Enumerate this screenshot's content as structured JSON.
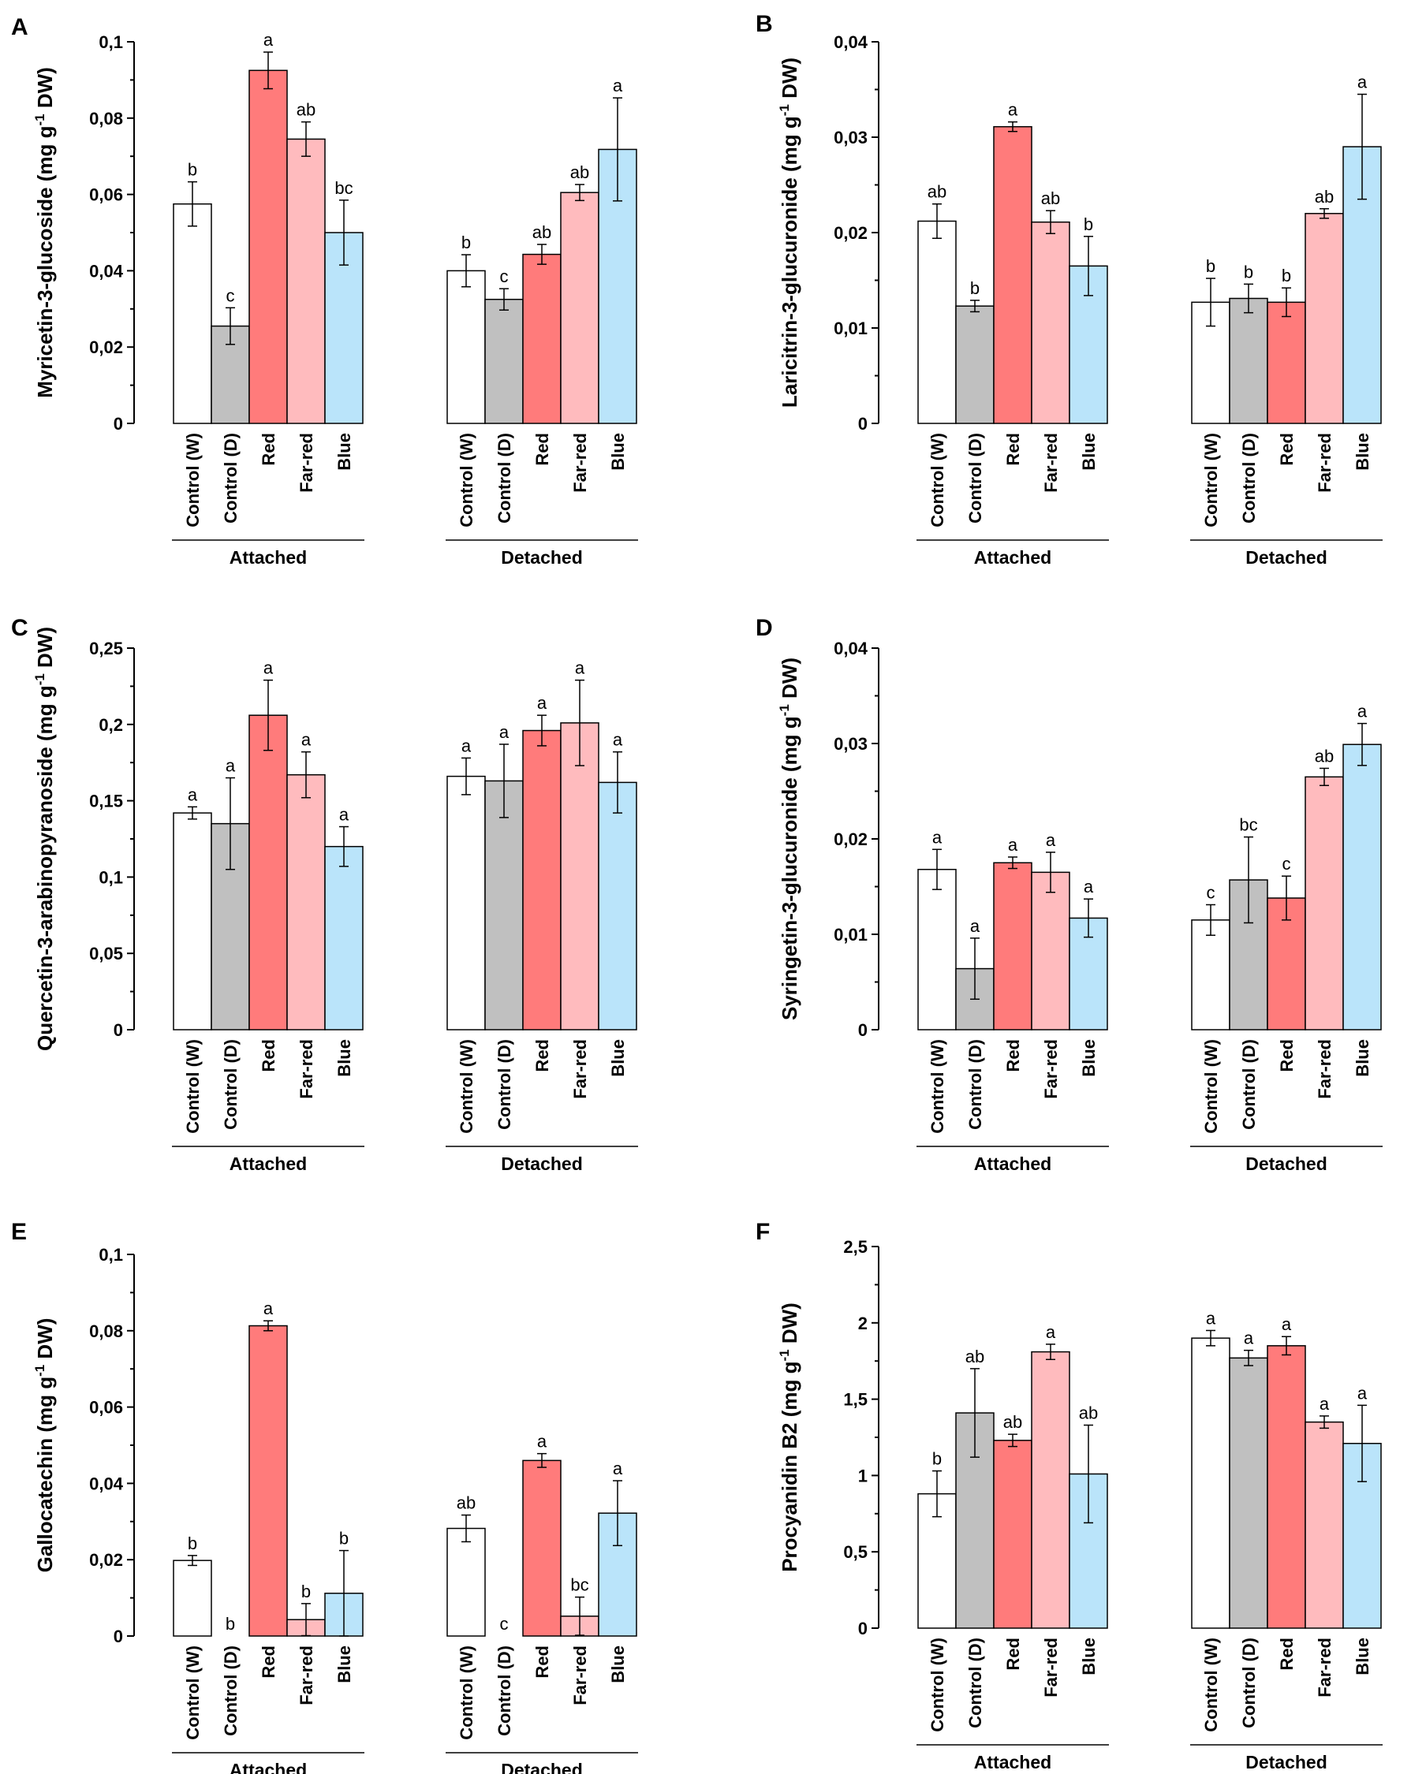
{
  "chart_data": [
    {
      "type": "bar",
      "panel": "A",
      "ylabel": "Myricetin-3-glucoside (mg g-1 DW)",
      "ylabel_main": "Myricetin-3-glucoside (mg g",
      "ylabel_sup": "-1",
      "ylabel_tail": " DW)",
      "ylim": [
        0,
        0.1
      ],
      "yticks": [
        "0",
        "0,02",
        "0,04",
        "0,06",
        "0,08",
        "0,1"
      ],
      "ytick_values": [
        0,
        0.02,
        0.04,
        0.06,
        0.08,
        0.1
      ],
      "categories": [
        "Control (W)",
        "Control (D)",
        "Red",
        "Far-red",
        "Blue"
      ],
      "groups": [
        {
          "name": "Attached",
          "values": [
            0.0575,
            0.0255,
            0.0925,
            0.0745,
            0.05
          ],
          "errors": [
            0.0058,
            0.0048,
            0.0048,
            0.0045,
            0.0085
          ],
          "labels": [
            "b",
            "c",
            "a",
            "ab",
            "bc"
          ]
        },
        {
          "name": "Detached",
          "values": [
            0.04,
            0.0325,
            0.0443,
            0.0605,
            0.0718
          ],
          "errors": [
            0.0042,
            0.0028,
            0.0026,
            0.0021,
            0.0135
          ],
          "labels": [
            "b",
            "c",
            "ab",
            "ab",
            "a"
          ]
        }
      ],
      "colors": [
        "#ffffff",
        "#c0c0c0",
        "#ff7b7b",
        "#ffbbbe",
        "#bae4fa"
      ]
    },
    {
      "type": "bar",
      "panel": "B",
      "ylabel": "Laricitrin-3-glucuronide (mg g-1 DW)",
      "ylabel_main": "Laricitrin-3-glucuronide (mg g",
      "ylabel_sup": "-1",
      "ylabel_tail": " DW)",
      "ylim": [
        0,
        0.04
      ],
      "yticks": [
        "0",
        "0,01",
        "0,02",
        "0,03",
        "0,04"
      ],
      "ytick_values": [
        0,
        0.01,
        0.02,
        0.03,
        0.04
      ],
      "categories": [
        "Control (W)",
        "Control (D)",
        "Red",
        "Far-red",
        "Blue"
      ],
      "groups": [
        {
          "name": "Attached",
          "values": [
            0.0212,
            0.0123,
            0.0311,
            0.0211,
            0.0165
          ],
          "errors": [
            0.0018,
            0.0006,
            0.0005,
            0.0012,
            0.0031
          ],
          "labels": [
            "ab",
            "b",
            "a",
            "ab",
            "b"
          ]
        },
        {
          "name": "Detached",
          "values": [
            0.0127,
            0.0131,
            0.0127,
            0.022,
            0.029
          ],
          "errors": [
            0.0025,
            0.0015,
            0.0015,
            0.0005,
            0.0055
          ],
          "labels": [
            "b",
            "b",
            "b",
            "ab",
            "a"
          ]
        }
      ],
      "colors": [
        "#ffffff",
        "#c0c0c0",
        "#ff7b7b",
        "#ffbbbe",
        "#bae4fa"
      ]
    },
    {
      "type": "bar",
      "panel": "C",
      "ylabel": "Quercetin-3-arabinopyranoside (mg g-1 DW)",
      "ylabel_main": "Quercetin-3-arabinopyranoside (mg g",
      "ylabel_sup": "-1",
      "ylabel_tail": " DW)",
      "ylim": [
        0,
        0.25
      ],
      "yticks": [
        "0",
        "0,05",
        "0,1",
        "0,15",
        "0,2",
        "0,25"
      ],
      "ytick_values": [
        0,
        0.05,
        0.1,
        0.15,
        0.2,
        0.25
      ],
      "categories": [
        "Control (W)",
        "Control (D)",
        "Red",
        "Far-red",
        "Blue"
      ],
      "groups": [
        {
          "name": "Attached",
          "values": [
            0.142,
            0.135,
            0.206,
            0.167,
            0.12
          ],
          "errors": [
            0.004,
            0.03,
            0.023,
            0.015,
            0.013
          ],
          "labels": [
            "a",
            "a",
            "a",
            "a",
            "a"
          ]
        },
        {
          "name": "Detached",
          "values": [
            0.166,
            0.163,
            0.196,
            0.201,
            0.162
          ],
          "errors": [
            0.012,
            0.024,
            0.01,
            0.028,
            0.02
          ],
          "labels": [
            "a",
            "a",
            "a",
            "a",
            "a"
          ]
        }
      ],
      "colors": [
        "#ffffff",
        "#c0c0c0",
        "#ff7b7b",
        "#ffbbbe",
        "#bae4fa"
      ]
    },
    {
      "type": "bar",
      "panel": "D",
      "ylabel": "Syringetin-3-glucuronide (mg g-1 DW)",
      "ylabel_main": "Syringetin-3-glucuronide (mg g",
      "ylabel_sup": "-1",
      "ylabel_tail": " DW)",
      "ylim": [
        0,
        0.04
      ],
      "yticks": [
        "0",
        "0,01",
        "0,02",
        "0,03",
        "0,04"
      ],
      "ytick_values": [
        0,
        0.01,
        0.02,
        0.03,
        0.04
      ],
      "categories": [
        "Control (W)",
        "Control (D)",
        "Red",
        "Far-red",
        "Blue"
      ],
      "groups": [
        {
          "name": "Attached",
          "values": [
            0.0168,
            0.0064,
            0.0175,
            0.0165,
            0.0117
          ],
          "errors": [
            0.0021,
            0.0032,
            0.0006,
            0.0021,
            0.002
          ],
          "labels": [
            "a",
            "a",
            "a",
            "a",
            "a"
          ]
        },
        {
          "name": "Detached",
          "values": [
            0.0115,
            0.0157,
            0.0138,
            0.0265,
            0.0299
          ],
          "errors": [
            0.0016,
            0.0045,
            0.0023,
            0.0009,
            0.0022
          ],
          "labels": [
            "c",
            "bc",
            "c",
            "ab",
            "a"
          ]
        }
      ],
      "colors": [
        "#ffffff",
        "#c0c0c0",
        "#ff7b7b",
        "#ffbbbe",
        "#bae4fa"
      ]
    },
    {
      "type": "bar",
      "panel": "E",
      "ylabel": "Gallocatechin (mg g-1 DW)",
      "ylabel_main": "Gallocatechin (mg g",
      "ylabel_sup": "-1",
      "ylabel_tail": " DW)",
      "ylim": [
        0,
        0.1
      ],
      "yticks": [
        "0",
        "0,02",
        "0,04",
        "0,06",
        "0,08",
        "0,1"
      ],
      "ytick_values": [
        0,
        0.02,
        0.04,
        0.06,
        0.08,
        0.1
      ],
      "categories": [
        "Control (W)",
        "Control (D)",
        "Red",
        "Far-red",
        "Blue"
      ],
      "groups": [
        {
          "name": "Attached",
          "values": [
            0.0198,
            0.0,
            0.0813,
            0.0043,
            0.0112
          ],
          "errors": [
            0.0013,
            0.0,
            0.0013,
            0.0042,
            0.0112
          ],
          "labels": [
            "b",
            "b",
            "a",
            "b",
            "b"
          ]
        },
        {
          "name": "Detached",
          "values": [
            0.0282,
            0.0,
            0.046,
            0.0052,
            0.0322
          ],
          "errors": [
            0.0035,
            0.0,
            0.0018,
            0.005,
            0.0085
          ],
          "labels": [
            "ab",
            "c",
            "a",
            "bc",
            "a"
          ]
        }
      ],
      "colors": [
        "#ffffff",
        "#c0c0c0",
        "#ff7b7b",
        "#ffbbbe",
        "#bae4fa"
      ]
    },
    {
      "type": "bar",
      "panel": "F",
      "ylabel": "Procyanidin B2 (mg g-1 DW)",
      "ylabel_main": "Procyanidin B2 (mg g",
      "ylabel_sup": "-1",
      "ylabel_tail": " DW)",
      "ylim": [
        0,
        2.5
      ],
      "yticks": [
        "0",
        "0,5",
        "1",
        "1,5",
        "2",
        "2,5"
      ],
      "ytick_values": [
        0,
        0.5,
        1,
        1.5,
        2,
        2.5
      ],
      "categories": [
        "Control (W)",
        "Control (D)",
        "Red",
        "Far-red",
        "Blue"
      ],
      "groups": [
        {
          "name": "Attached",
          "values": [
            0.88,
            1.41,
            1.23,
            1.81,
            1.01
          ],
          "errors": [
            0.15,
            0.29,
            0.04,
            0.05,
            0.32
          ],
          "labels": [
            "b",
            "ab",
            "ab",
            "a",
            "ab"
          ]
        },
        {
          "name": "Detached",
          "values": [
            1.9,
            1.77,
            1.85,
            1.35,
            1.21
          ],
          "errors": [
            0.05,
            0.05,
            0.06,
            0.04,
            0.25
          ],
          "labels": [
            "a",
            "a",
            "a",
            "a",
            "a"
          ]
        }
      ],
      "colors": [
        "#ffffff",
        "#c0c0c0",
        "#ff7b7b",
        "#ffbbbe",
        "#bae4fa"
      ]
    }
  ]
}
